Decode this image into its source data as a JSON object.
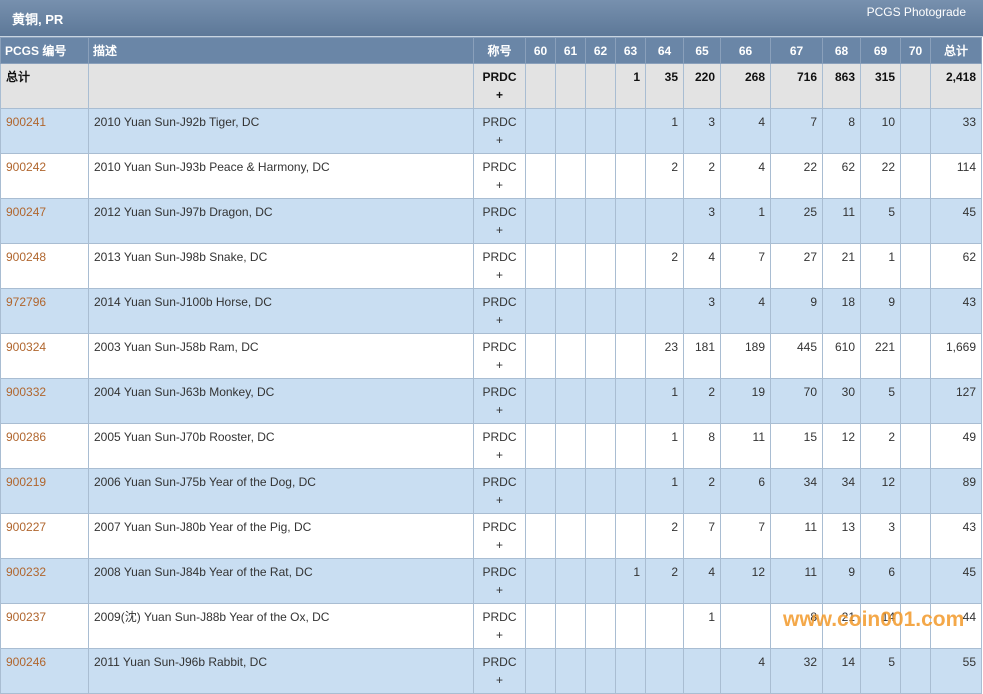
{
  "header": {
    "title": "黄铜, PR",
    "subtitle": "PCGS Photograde"
  },
  "table": {
    "columns": [
      "PCGS 编号",
      "描述",
      "称号",
      "60",
      "61",
      "62",
      "63",
      "64",
      "65",
      "66",
      "67",
      "68",
      "69",
      "70",
      "总计"
    ],
    "rows": [
      [
        "总计",
        null,
        "PRDC +",
        null,
        null,
        null,
        "1",
        "35",
        "220",
        "268",
        "716",
        "863",
        "315",
        null,
        "2,418"
      ],
      [
        "900241",
        "2010 Yuan Sun-J92b Tiger, DC",
        "PRDC +",
        null,
        null,
        null,
        null,
        "1",
        "3",
        "4",
        "7",
        "8",
        "10",
        null,
        "33"
      ],
      [
        "900242",
        "2010 Yuan Sun-J93b Peace & Harmony, DC",
        "PRDC +",
        null,
        null,
        null,
        null,
        "2",
        "2",
        "4",
        "22",
        "62",
        "22",
        null,
        "114"
      ],
      [
        "900247",
        "2012 Yuan Sun-J97b Dragon, DC",
        "PRDC +",
        null,
        null,
        null,
        null,
        null,
        "3",
        "1",
        "25",
        "11",
        "5",
        null,
        "45"
      ],
      [
        "900248",
        "2013 Yuan Sun-J98b Snake, DC",
        "PRDC +",
        null,
        null,
        null,
        null,
        "2",
        "4",
        "7",
        "27",
        "21",
        "1",
        null,
        "62"
      ],
      [
        "972796",
        "2014 Yuan Sun-J100b Horse, DC",
        "PRDC +",
        null,
        null,
        null,
        null,
        null,
        "3",
        "4",
        "9",
        "18",
        "9",
        null,
        "43"
      ],
      [
        "900324",
        "2003 Yuan Sun-J58b Ram, DC",
        "PRDC +",
        null,
        null,
        null,
        null,
        "23",
        "181",
        "189",
        "445",
        "610",
        "221",
        null,
        "1,669"
      ],
      [
        "900332",
        "2004 Yuan Sun-J63b Monkey, DC",
        "PRDC +",
        null,
        null,
        null,
        null,
        "1",
        "2",
        "19",
        "70",
        "30",
        "5",
        null,
        "127"
      ],
      [
        "900286",
        "2005 Yuan Sun-J70b Rooster, DC",
        "PRDC +",
        null,
        null,
        null,
        null,
        "1",
        "8",
        "11",
        "15",
        "12",
        "2",
        null,
        "49"
      ],
      [
        "900219",
        "2006 Yuan Sun-J75b Year of the Dog, DC",
        "PRDC +",
        null,
        null,
        null,
        null,
        "1",
        "2",
        "6",
        "34",
        "34",
        "12",
        null,
        "89"
      ],
      [
        "900227",
        "2007 Yuan Sun-J80b Year of the Pig, DC",
        "PRDC +",
        null,
        null,
        null,
        null,
        "2",
        "7",
        "7",
        "11",
        "13",
        "3",
        null,
        "43"
      ],
      [
        "900232",
        "2008 Yuan Sun-J84b Year of the Rat, DC",
        "PRDC +",
        null,
        null,
        null,
        "1",
        "2",
        "4",
        "12",
        "11",
        "9",
        "6",
        null,
        "45"
      ],
      [
        "900237",
        "2009(沈) Yuan Sun-J88b Year of the Ox, DC",
        "PRDC +",
        null,
        null,
        null,
        null,
        null,
        "1",
        null,
        "8",
        "21",
        "14",
        null,
        "44"
      ],
      [
        "900246",
        "2011 Yuan Sun-J96b Rabbit, DC",
        "PRDC +",
        null,
        null,
        null,
        null,
        null,
        null,
        "4",
        "32",
        "14",
        "5",
        null,
        "55"
      ]
    ]
  },
  "watermark": "www.coin001.com"
}
